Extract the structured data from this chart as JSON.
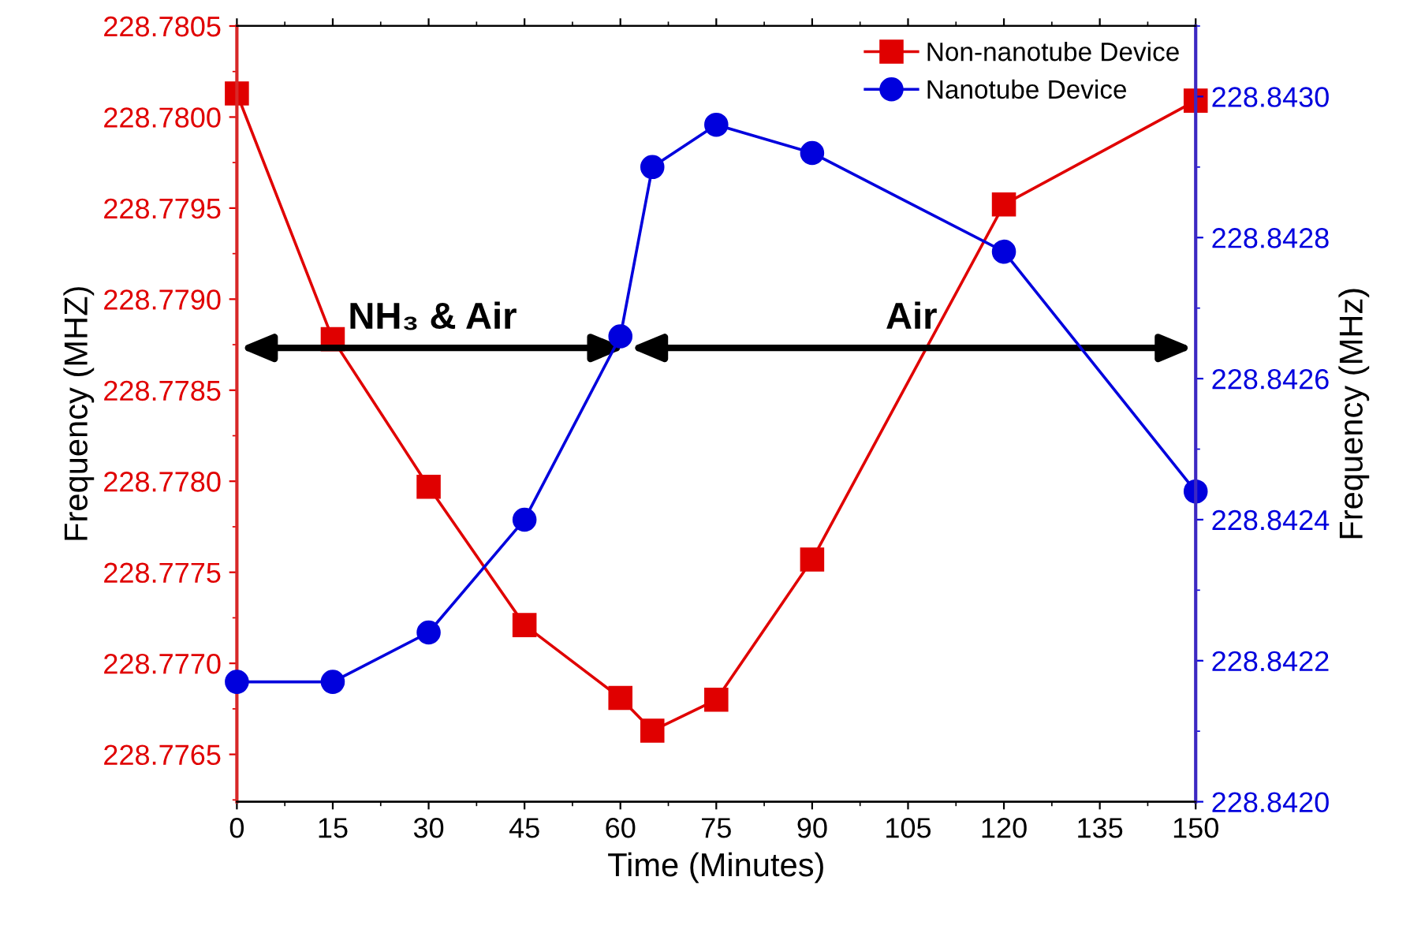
{
  "chart_data": {
    "type": "line",
    "xlabel": "Time (Minutes)",
    "ylabel": "Frequency (MHZ)",
    "y2label": "Frequency (MHz)",
    "x": [
      0,
      15,
      30,
      45,
      60,
      65,
      75,
      90,
      120,
      150
    ],
    "series": [
      {
        "name": "Non-nanotube Device",
        "color": "#e00000",
        "marker": "square",
        "values": [
          228.78013,
          228.77878,
          228.77797,
          228.77721,
          228.77681,
          228.77663,
          228.7768,
          228.77757,
          228.77952,
          228.78009
        ]
      },
      {
        "name": "Nanotube Device",
        "color": "#0000dd",
        "marker": "circle",
        "axis": "y2",
        "values": [
          228.84217,
          228.84217,
          228.84224,
          228.8424,
          228.84266,
          228.8429,
          228.84296,
          228.84292,
          228.84278,
          228.84244
        ]
      }
    ],
    "xlim": [
      0,
      150
    ],
    "xticks": [
      0,
      15,
      30,
      45,
      60,
      75,
      90,
      105,
      120,
      135,
      150
    ],
    "ylim": [
      228.77624,
      228.7805
    ],
    "yticks": [
      {
        "value": 228.7765,
        "label": "228.7765"
      },
      {
        "value": 228.777,
        "label": "228.7770"
      },
      {
        "value": 228.7775,
        "label": "228.7775"
      },
      {
        "value": 228.778,
        "label": "228.7780"
      },
      {
        "value": 228.7785,
        "label": "228.7785"
      },
      {
        "value": 228.779,
        "label": "228.7790"
      },
      {
        "value": 228.7795,
        "label": "228.7795"
      },
      {
        "value": 228.78,
        "label": "228.7800"
      },
      {
        "value": 228.7805,
        "label": "228.7805"
      }
    ],
    "y2lim": [
      228.842,
      228.8431
    ],
    "y2ticks": [
      {
        "value": 228.842,
        "label": "228.8420"
      },
      {
        "value": 228.8422,
        "label": "228.8422"
      },
      {
        "value": 228.8424,
        "label": "228.8424"
      },
      {
        "value": 228.8426,
        "label": "228.8426"
      },
      {
        "value": 228.8428,
        "label": "228.8428"
      },
      {
        "value": 228.843,
        "label": "228.8430"
      }
    ],
    "annotations": [
      "NH₃ & Air",
      "Air"
    ],
    "grid": false,
    "legend": "top right",
    "line_style": "solid"
  }
}
